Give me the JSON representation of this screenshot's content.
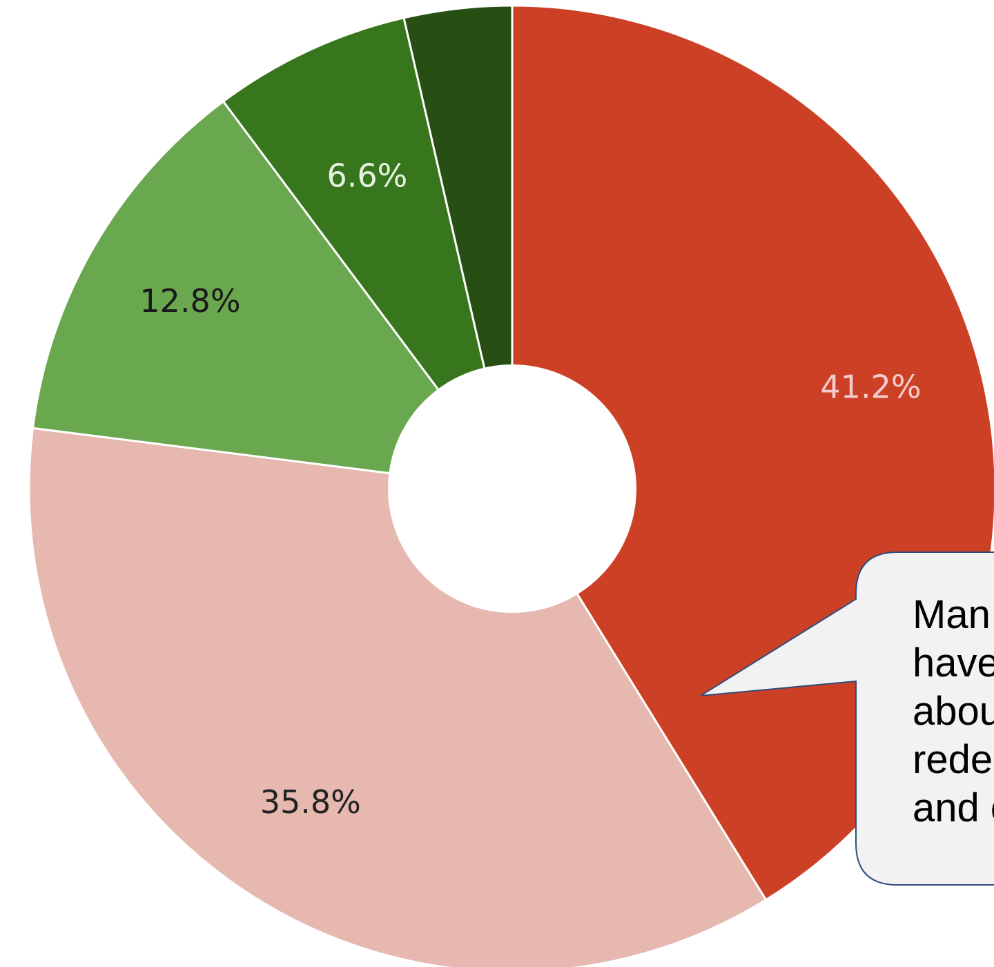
{
  "chart_data": {
    "type": "pie",
    "donut": true,
    "slices": [
      {
        "label": "41.2%",
        "value": 41.2,
        "color": "#cc4125",
        "label_color": "#f4cccc"
      },
      {
        "label": "35.8%",
        "value": 35.8,
        "color": "#e6b8af",
        "label_color": "#222222"
      },
      {
        "label": "12.8%",
        "value": 12.8,
        "color": "#6aa84f",
        "label_color": "#1a1a1a"
      },
      {
        "label": "6.6%",
        "value": 6.6,
        "color": "#38761d",
        "label_color": "#e8f2e4"
      },
      {
        "label": "",
        "value": 3.6,
        "color": "#274e13",
        "label_color": "#ffffff"
      }
    ],
    "start_angle_deg": 0,
    "direction": "clockwise"
  },
  "callout": {
    "lines": [
      "Man",
      "have",
      "abou",
      "rede",
      "and c"
    ]
  }
}
